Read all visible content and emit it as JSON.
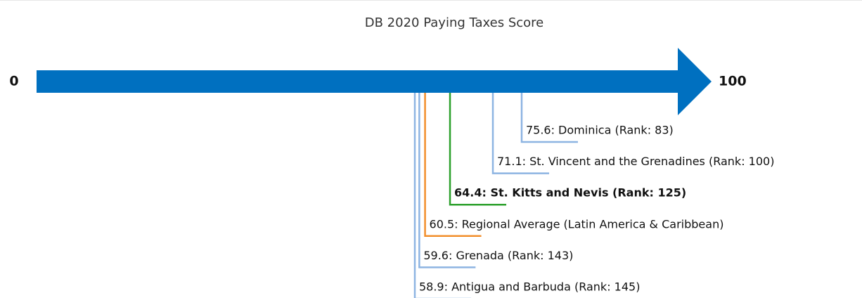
{
  "chart_data": {
    "type": "number-line",
    "title": "DB 2020 Paying Taxes Score",
    "xlim": [
      0,
      100
    ],
    "xticks": [
      0,
      100
    ],
    "axis_color": "#0070c0",
    "points": [
      {
        "value": 75.6,
        "value_label": "75.6: Dominica (Rank: 83)",
        "color": "#8db4e2",
        "bold": false
      },
      {
        "value": 71.1,
        "value_label": "71.1: St. Vincent and the Grenadines (Rank: 100)",
        "color": "#8db4e2",
        "bold": false
      },
      {
        "value": 64.4,
        "value_label": "64.4: St. Kitts and Nevis (Rank: 125)",
        "color": "#2ca02c",
        "bold": true
      },
      {
        "value": 60.5,
        "value_label": "60.5: Regional Average (Latin America & Caribbean)",
        "color": "#f28e2b",
        "bold": false
      },
      {
        "value": 59.6,
        "value_label": "59.6: Grenada (Rank: 143)",
        "color": "#8db4e2",
        "bold": false
      },
      {
        "value": 58.9,
        "value_label": "58.9: Antigua and Barbuda (Rank: 145)",
        "color": "#8db4e2",
        "bold": false
      }
    ]
  }
}
